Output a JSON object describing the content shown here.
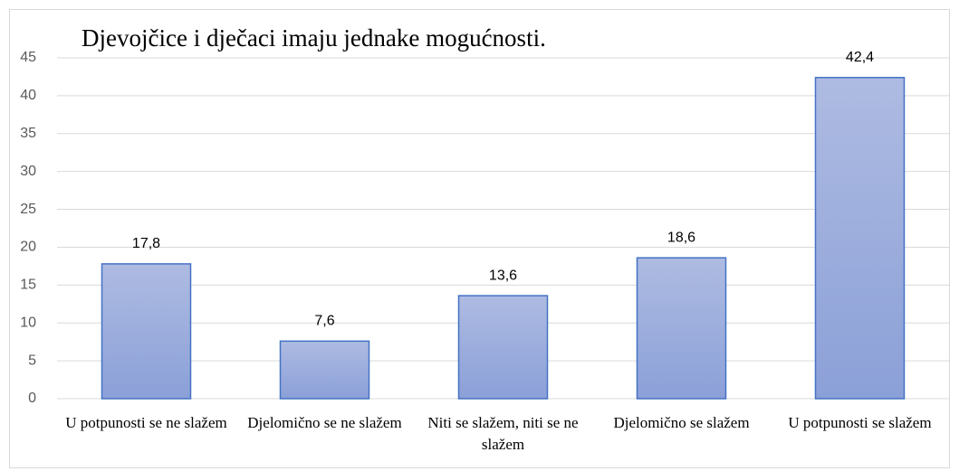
{
  "chart_data": {
    "type": "bar",
    "title": "Djevojčice i dječaci imaju jednake mogućnosti.",
    "categories": [
      "U potpunosti se ne slažem",
      "Djelomično se ne slažem",
      "Niti se slažem, niti se ne slažem",
      "Djelomično se slažem",
      "U potpunosti se slažem"
    ],
    "values": [
      17.8,
      7.6,
      13.6,
      18.6,
      42.4
    ],
    "value_labels": [
      "17,8",
      "7,6",
      "13,6",
      "18,6",
      "42,4"
    ],
    "color": "#4472c4",
    "ylim": [
      0,
      45
    ],
    "yticks": [
      0,
      5,
      10,
      15,
      20,
      25,
      30,
      35,
      40,
      45
    ],
    "grid": true
  }
}
